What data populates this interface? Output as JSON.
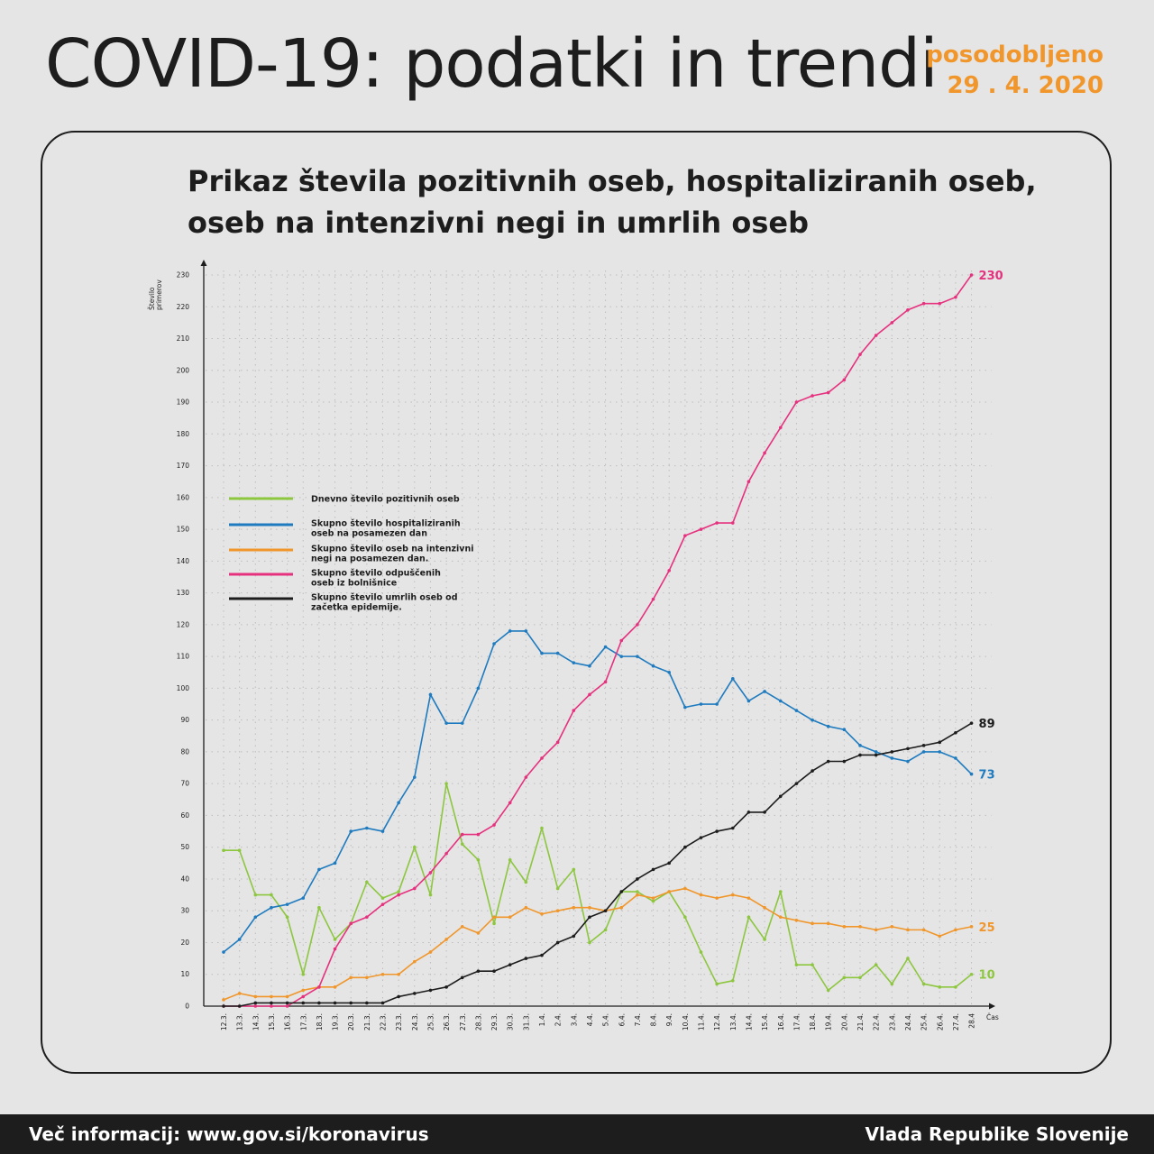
{
  "header": {
    "title": "COVID-19: podatki in trendi",
    "updated_label": "posodobljeno",
    "updated_date": "29 . 4. 2020"
  },
  "footer": {
    "info": "Več informacij: www.gov.si/koronavirus",
    "brand": "Vlada Republike Slovenije"
  },
  "chart_data": {
    "type": "line",
    "title": "Prikaz števila pozitivnih oseb, hospitaliziranih oseb, oseb na intenzivni negi in umrlih oseb",
    "ylabel": "Število primerov",
    "xlabel": "Čas",
    "ylim": [
      0,
      230
    ],
    "yticks": [
      0,
      10,
      20,
      30,
      40,
      50,
      60,
      70,
      80,
      90,
      100,
      110,
      120,
      130,
      140,
      150,
      160,
      170,
      180,
      190,
      200,
      210,
      220,
      230
    ],
    "grid": true,
    "legend_position": "left",
    "categories": [
      "12.3.",
      "13.3.",
      "14.3.",
      "15.3.",
      "16.3.",
      "17.3.",
      "18.3.",
      "19.3.",
      "20.3.",
      "21.3.",
      "22.3.",
      "23.3.",
      "24.3.",
      "25.3.",
      "26.3.",
      "27.3.",
      "28.3.",
      "29.3.",
      "30.3.",
      "31.3.",
      "1.4.",
      "2.4.",
      "3.4.",
      "4.4.",
      "5.4.",
      "6.4.",
      "7.4.",
      "8.4.",
      "9.4.",
      "10.4.",
      "11.4.",
      "12.4.",
      "13.4.",
      "14.4.",
      "15.4.",
      "16.4.",
      "17.4.",
      "18.4.",
      "19.4.",
      "20.4.",
      "21.4.",
      "22.4.",
      "23.4.",
      "24.4.",
      "25.4.",
      "26.4.",
      "27.4.",
      "28.4"
    ],
    "series": [
      {
        "name": "Dnevno število pozitivnih oseb",
        "color": "#8dc63f",
        "end_label": "10",
        "values": [
          49,
          49,
          35,
          35,
          28,
          10,
          31,
          21,
          26,
          39,
          34,
          36,
          50,
          35,
          70,
          51,
          46,
          26,
          46,
          39,
          56,
          37,
          43,
          20,
          24,
          36,
          36,
          33,
          36,
          28,
          17,
          7,
          8,
          28,
          21,
          36,
          13,
          13,
          5,
          9,
          9,
          13,
          7,
          15,
          7,
          6,
          6,
          10
        ]
      },
      {
        "name": "Skupno število hospitaliziranih oseb na posamezen dan",
        "color": "#1f7bbf",
        "end_label": "73",
        "values": [
          17,
          21,
          28,
          31,
          32,
          34,
          43,
          45,
          55,
          56,
          55,
          64,
          72,
          98,
          89,
          89,
          100,
          114,
          118,
          118,
          111,
          111,
          108,
          107,
          113,
          110,
          110,
          107,
          105,
          94,
          95,
          95,
          103,
          96,
          99,
          96,
          93,
          90,
          88,
          87,
          82,
          80,
          78,
          77,
          80,
          80,
          78,
          73
        ]
      },
      {
        "name": "Skupno število oseb na intenzivni negi na posamezen dan.",
        "color": "#f0962b",
        "end_label": "25",
        "values": [
          2,
          4,
          3,
          3,
          3,
          5,
          6,
          6,
          9,
          9,
          10,
          10,
          14,
          17,
          21,
          25,
          23,
          28,
          28,
          31,
          29,
          30,
          31,
          31,
          30,
          31,
          35,
          34,
          36,
          37,
          35,
          34,
          35,
          34,
          31,
          28,
          27,
          26,
          26,
          25,
          25,
          24,
          25,
          24,
          24,
          22,
          24,
          25
        ]
      },
      {
        "name": "Skupno število odpuščenih oseb iz bolnišnice",
        "color": "#e6317e",
        "end_label": "230",
        "values": [
          0,
          0,
          0,
          0,
          0,
          3,
          6,
          18,
          26,
          28,
          32,
          35,
          37,
          42,
          48,
          54,
          54,
          57,
          64,
          72,
          78,
          83,
          93,
          98,
          102,
          115,
          120,
          128,
          137,
          148,
          150,
          152,
          152,
          165,
          174,
          182,
          190,
          192,
          193,
          197,
          205,
          211,
          215,
          219,
          221,
          221,
          223,
          230
        ]
      },
      {
        "name": "Skupno število umrlih oseb od začetka epidemije.",
        "color": "#1d1d1d",
        "end_label": "89",
        "values": [
          0,
          0,
          1,
          1,
          1,
          1,
          1,
          1,
          1,
          1,
          1,
          3,
          4,
          5,
          6,
          9,
          11,
          11,
          13,
          15,
          16,
          20,
          22,
          28,
          30,
          36,
          40,
          43,
          45,
          50,
          53,
          55,
          56,
          61,
          61,
          66,
          70,
          74,
          77,
          77,
          79,
          79,
          80,
          81,
          82,
          83,
          86,
          89
        ]
      }
    ]
  }
}
